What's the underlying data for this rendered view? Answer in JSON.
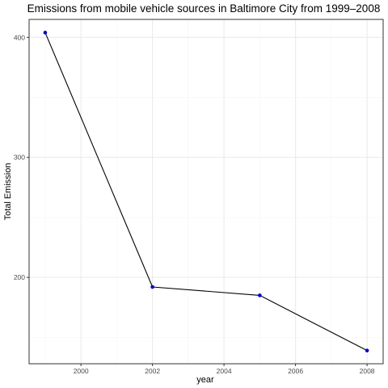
{
  "chart_data": {
    "type": "line",
    "title": "Emissions from mobile vehicle sources in Baltimore City from 1999–2008",
    "xlabel": "year",
    "ylabel": "Total Emission",
    "x": [
      1999,
      2002,
      2005,
      2008
    ],
    "series": [
      {
        "values": [
          404,
          192,
          185,
          139
        ]
      }
    ],
    "xlim": [
      1998.55,
      2008.45
    ],
    "ylim": [
      128,
      415
    ],
    "x_ticks": [
      2000,
      2002,
      2004,
      2006,
      2008
    ],
    "x_tick_labels": [
      "2000",
      "2002",
      "2004",
      "2006",
      "2008"
    ],
    "y_ticks": [
      200,
      300,
      400
    ],
    "y_tick_labels": [
      "200",
      "300",
      "400"
    ],
    "grid": true,
    "legend": "none",
    "colors": {
      "line": "#000000",
      "point": "#0000cc",
      "grid_major": "#ebebeb",
      "grid_minor": "#f5f5f5",
      "panel_border": "#333333"
    }
  }
}
